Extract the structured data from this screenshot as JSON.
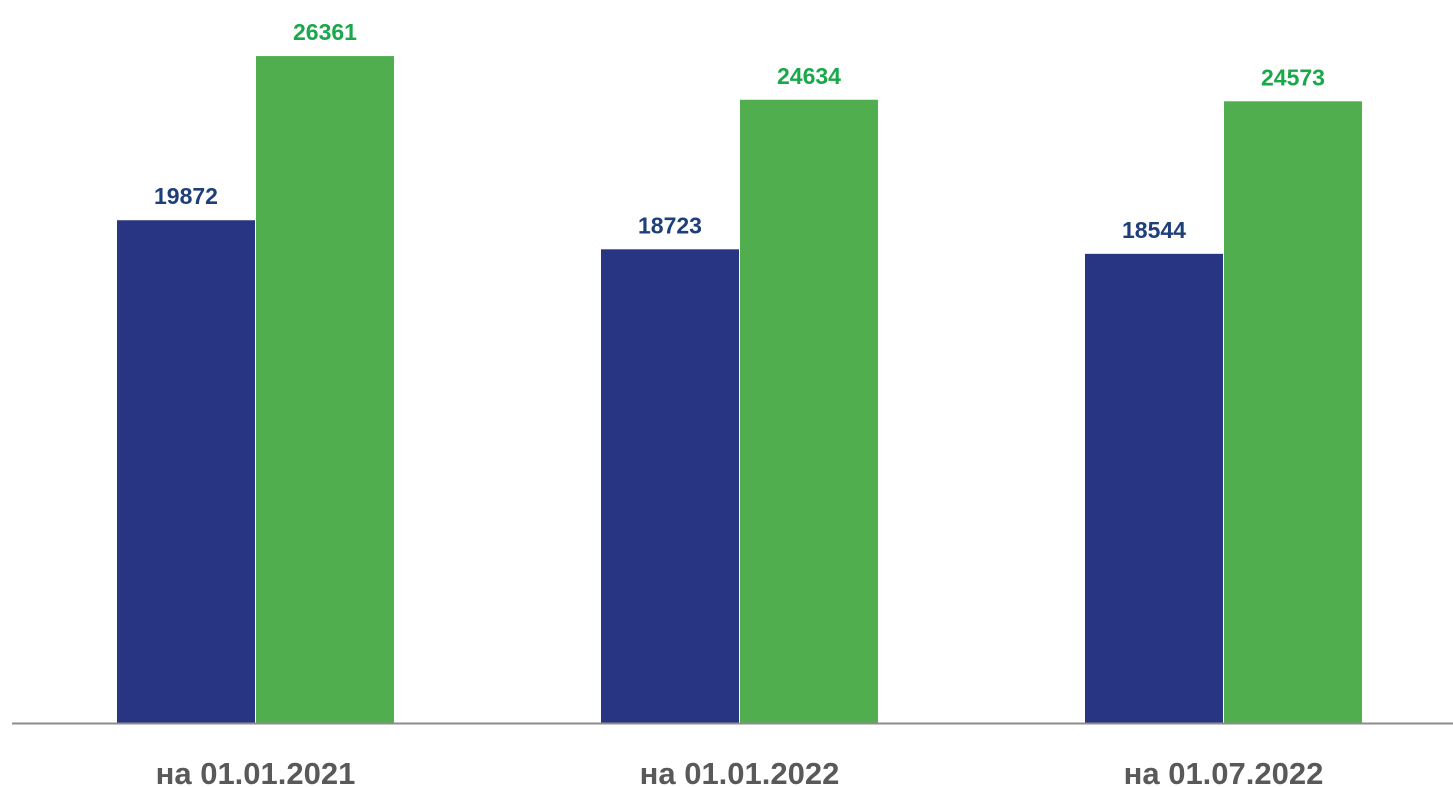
{
  "chart_data": {
    "type": "bar",
    "categories": [
      "на 01.01.2021",
      "на 01.01.2022",
      "на 01.07.2022"
    ],
    "series": [
      {
        "values": [
          19872,
          18723,
          18544
        ],
        "color": "#283583",
        "label_color": "#1f3f7a"
      },
      {
        "values": [
          26361,
          24634,
          24573
        ],
        "color": "#50ae4f",
        "label_color": "#1aa84a"
      }
    ],
    "ylim": [
      0,
      27000
    ],
    "grid": false,
    "legend": "none",
    "axis_color": "#8c8c8c"
  }
}
